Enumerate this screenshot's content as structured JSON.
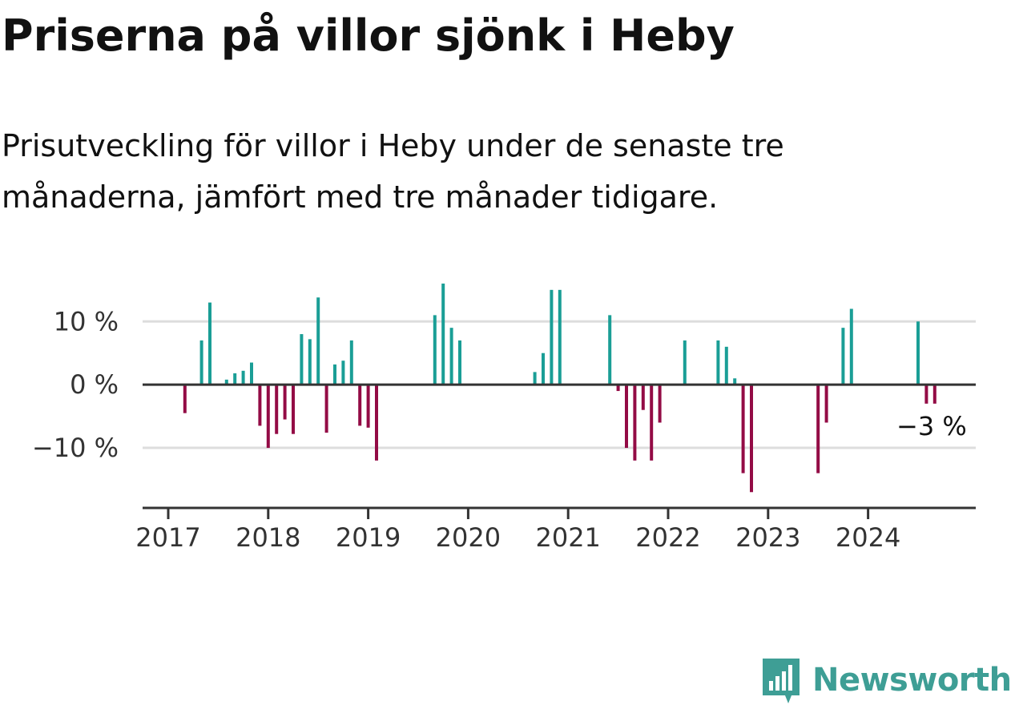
{
  "title": "Priserna på villor sjönk i Heby",
  "subtitle": "Prisutveckling för villor i Heby under de senaste tre månaderna, jämfört med tre månader tidigare.",
  "brand": {
    "name": "Newsworthy",
    "icon": "newsworthy-logo-icon",
    "color": "#3e9e95"
  },
  "colors": {
    "positive": "#1a9e96",
    "negative": "#930b45",
    "axis": "#333333",
    "grid": "#dddddd",
    "text": "#333333"
  },
  "chart_data": {
    "type": "bar",
    "title": "Priserna på villor sjönk i Heby",
    "subtitle": "Prisutveckling för villor i Heby under de senaste tre månaderna, jämfört med tre månader tidigare.",
    "xlabel": "",
    "ylabel": "",
    "ylim": [
      -19.5,
      16.5
    ],
    "y_ticks": [
      {
        "value": 10,
        "label": "10 %"
      },
      {
        "value": 0,
        "label": "0 %"
      },
      {
        "value": -10,
        "label": "−10 %"
      }
    ],
    "x_ticks": [
      "2017",
      "2018",
      "2019",
      "2020",
      "2021",
      "2022",
      "2023",
      "2024"
    ],
    "grid": true,
    "series": [
      {
        "values": [
          {
            "x": "2017-03",
            "y": -4.5
          },
          {
            "x": "2017-05",
            "y": 7
          },
          {
            "x": "2017-06",
            "y": 13
          },
          {
            "x": "2017-08",
            "y": 0.8
          },
          {
            "x": "2017-09",
            "y": 1.8
          },
          {
            "x": "2017-10",
            "y": 2.2
          },
          {
            "x": "2017-11",
            "y": 3.5
          },
          {
            "x": "2017-12",
            "y": -6.5
          },
          {
            "x": "2018-01",
            "y": -10
          },
          {
            "x": "2018-02",
            "y": -7.8
          },
          {
            "x": "2018-03",
            "y": -5.5
          },
          {
            "x": "2018-04",
            "y": -7.8
          },
          {
            "x": "2018-05",
            "y": 8
          },
          {
            "x": "2018-06",
            "y": 7.2
          },
          {
            "x": "2018-07",
            "y": 13.8
          },
          {
            "x": "2018-08",
            "y": -7.6
          },
          {
            "x": "2018-09",
            "y": 3.2
          },
          {
            "x": "2018-10",
            "y": 3.8
          },
          {
            "x": "2018-11",
            "y": 7
          },
          {
            "x": "2018-12",
            "y": -6.5
          },
          {
            "x": "2019-01",
            "y": -6.8
          },
          {
            "x": "2019-02",
            "y": -12
          },
          {
            "x": "2019-09",
            "y": 11
          },
          {
            "x": "2019-10",
            "y": 16
          },
          {
            "x": "2019-11",
            "y": 9
          },
          {
            "x": "2019-12",
            "y": 7
          },
          {
            "x": "2020-09",
            "y": 2
          },
          {
            "x": "2020-10",
            "y": 5
          },
          {
            "x": "2020-11",
            "y": 15
          },
          {
            "x": "2020-12",
            "y": 15
          },
          {
            "x": "2021-06",
            "y": 11
          },
          {
            "x": "2021-07",
            "y": -1
          },
          {
            "x": "2021-08",
            "y": -10
          },
          {
            "x": "2021-09",
            "y": -12
          },
          {
            "x": "2021-10",
            "y": -4
          },
          {
            "x": "2021-11",
            "y": -12
          },
          {
            "x": "2021-12",
            "y": -6
          },
          {
            "x": "2022-03",
            "y": 7
          },
          {
            "x": "2022-07",
            "y": 7
          },
          {
            "x": "2022-08",
            "y": 6
          },
          {
            "x": "2022-09",
            "y": 1
          },
          {
            "x": "2022-10",
            "y": -14
          },
          {
            "x": "2022-11",
            "y": -17
          },
          {
            "x": "2023-07",
            "y": -14
          },
          {
            "x": "2023-08",
            "y": -6
          },
          {
            "x": "2023-10",
            "y": 9
          },
          {
            "x": "2023-11",
            "y": 12
          },
          {
            "x": "2024-07",
            "y": 10
          },
          {
            "x": "2024-08",
            "y": -3
          },
          {
            "x": "2024-09",
            "y": -3
          }
        ]
      }
    ],
    "annotation": {
      "x": "2024-09",
      "text": "−3 %"
    }
  }
}
